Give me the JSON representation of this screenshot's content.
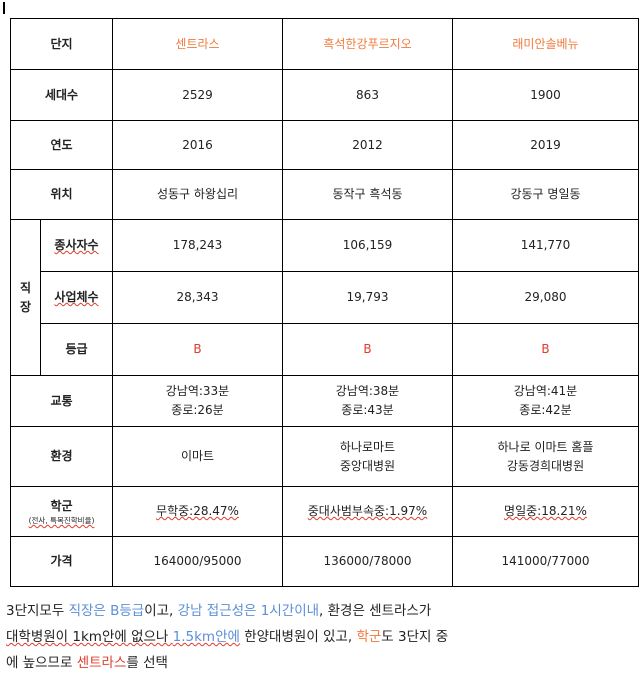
{
  "header": {
    "label": "단지",
    "complexes": [
      "센트라스",
      "흑석한강푸르지오",
      "래미안솔베뉴"
    ]
  },
  "rows": {
    "households": {
      "label": "세대수",
      "values": [
        "2529",
        "863",
        "1900"
      ]
    },
    "year": {
      "label": "연도",
      "values": [
        "2016",
        "2012",
        "2019"
      ]
    },
    "location": {
      "label": "위치",
      "values": [
        "성동구 하왕십리",
        "동작구 흑석동",
        "강동구 명일동"
      ]
    },
    "workplace": {
      "group_label_1": "직",
      "group_label_2": "장",
      "employees": {
        "label": "종사자수",
        "values": [
          "178,243",
          "106,159",
          "141,770"
        ]
      },
      "businesses": {
        "label": "사업체수",
        "values": [
          "28,343",
          "19,793",
          "29,080"
        ]
      },
      "grade": {
        "label": "등급",
        "values": [
          "B",
          "B",
          "B"
        ]
      }
    },
    "transport": {
      "label": "교통",
      "line1": [
        "강남역:33분",
        "강남역:38분",
        "강남역:41분"
      ],
      "line2": [
        "종로:26분",
        "종로:43분",
        "종로:42분"
      ]
    },
    "environment": {
      "label": "환경",
      "line1": [
        "이마트",
        "하나로마트",
        "하나로 이마트 홈플"
      ],
      "line2": [
        "",
        "중앙대병원",
        "강동경희대병원"
      ]
    },
    "school": {
      "label": "학군",
      "sublabel": "(전사, 특목진학비율)",
      "values": [
        "무학중:28.47%",
        "중대사범부속중:1.97%",
        "명일중:18.21%"
      ]
    },
    "price": {
      "label": "가격",
      "values": [
        "164000/95000",
        "136000/78000",
        "141000/77000"
      ]
    }
  },
  "summary": {
    "p1": "3단지모두 ",
    "p2": "직장은 B등급",
    "p3": "이고, ",
    "p4": "강남 접근성은 1시간이내",
    "p5": ", 환경은 센트라스가",
    "p6": "대학병원이 1km안에 없으나 ",
    "p7": "1.5km안에",
    "p8": " 한양대병원이 있고, ",
    "p9": "학군",
    "p10": "도 3단지 중",
    "p11": "에 높으므로 ",
    "p12": "센트라스",
    "p13": "를 선택"
  }
}
